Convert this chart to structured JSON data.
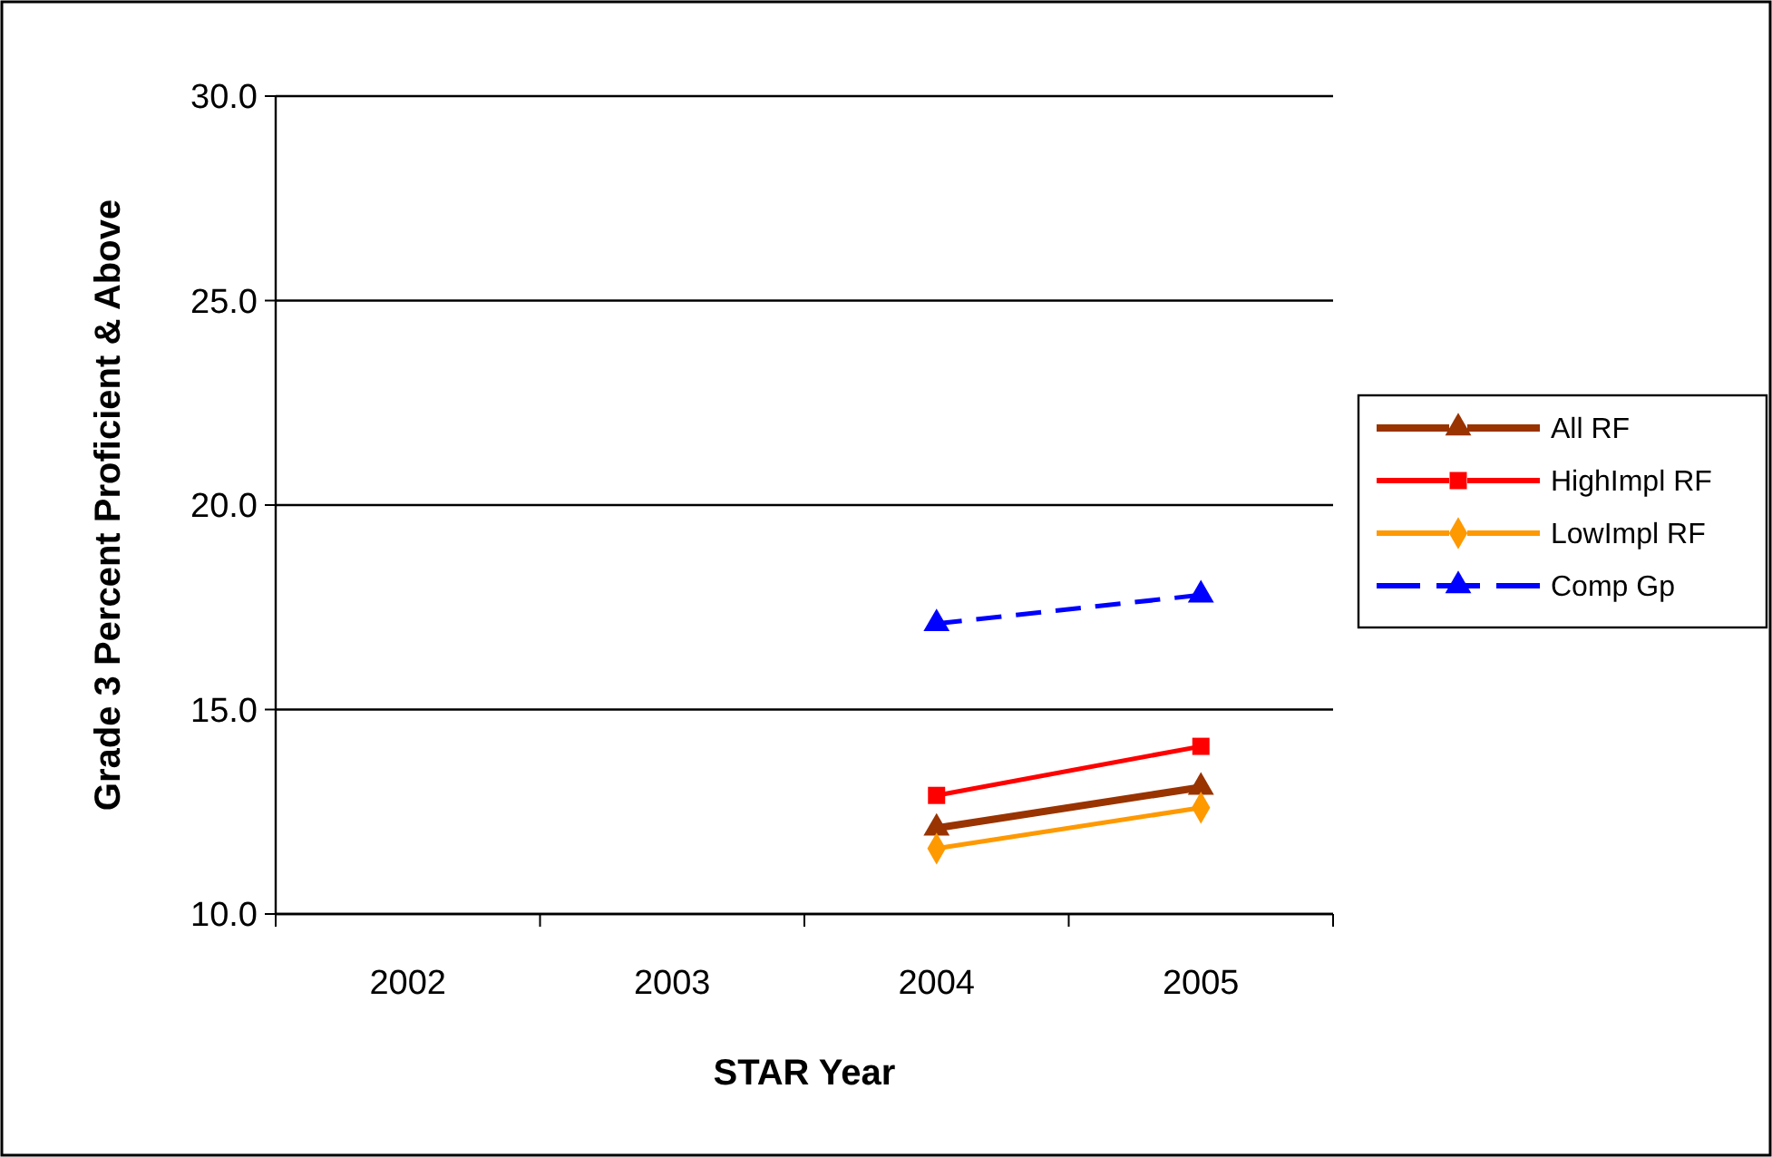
{
  "chart_data": {
    "type": "line",
    "xlabel": "STAR Year",
    "ylabel": "Grade 3 Percent Proficient & Above",
    "categories": [
      "2002",
      "2003",
      "2004",
      "2005"
    ],
    "series": [
      {
        "name": "All RF",
        "color": "#993300",
        "marker": "triangle",
        "line_style": "solid",
        "values": [
          null,
          null,
          12.1,
          13.1
        ]
      },
      {
        "name": "HighImpl RF",
        "color": "#ff0000",
        "marker": "square",
        "line_style": "solid",
        "values": [
          null,
          null,
          12.9,
          14.1
        ]
      },
      {
        "name": "LowImpl RF",
        "color": "#ff9900",
        "marker": "diamond",
        "line_style": "solid",
        "values": [
          null,
          null,
          11.6,
          12.6
        ]
      },
      {
        "name": "Comp Gp",
        "color": "#0000ff",
        "marker": "triangle",
        "line_style": "dashed",
        "values": [
          null,
          null,
          17.1,
          17.8
        ]
      }
    ],
    "ylim": [
      10,
      30
    ],
    "yticks": [
      {
        "value": 10,
        "label": "10.0"
      },
      {
        "value": 15,
        "label": "15.0"
      },
      {
        "value": 20,
        "label": "20.0"
      },
      {
        "value": 25,
        "label": "25.0"
      },
      {
        "value": 30,
        "label": "30.0"
      }
    ],
    "grid": "y",
    "legend": "right"
  }
}
